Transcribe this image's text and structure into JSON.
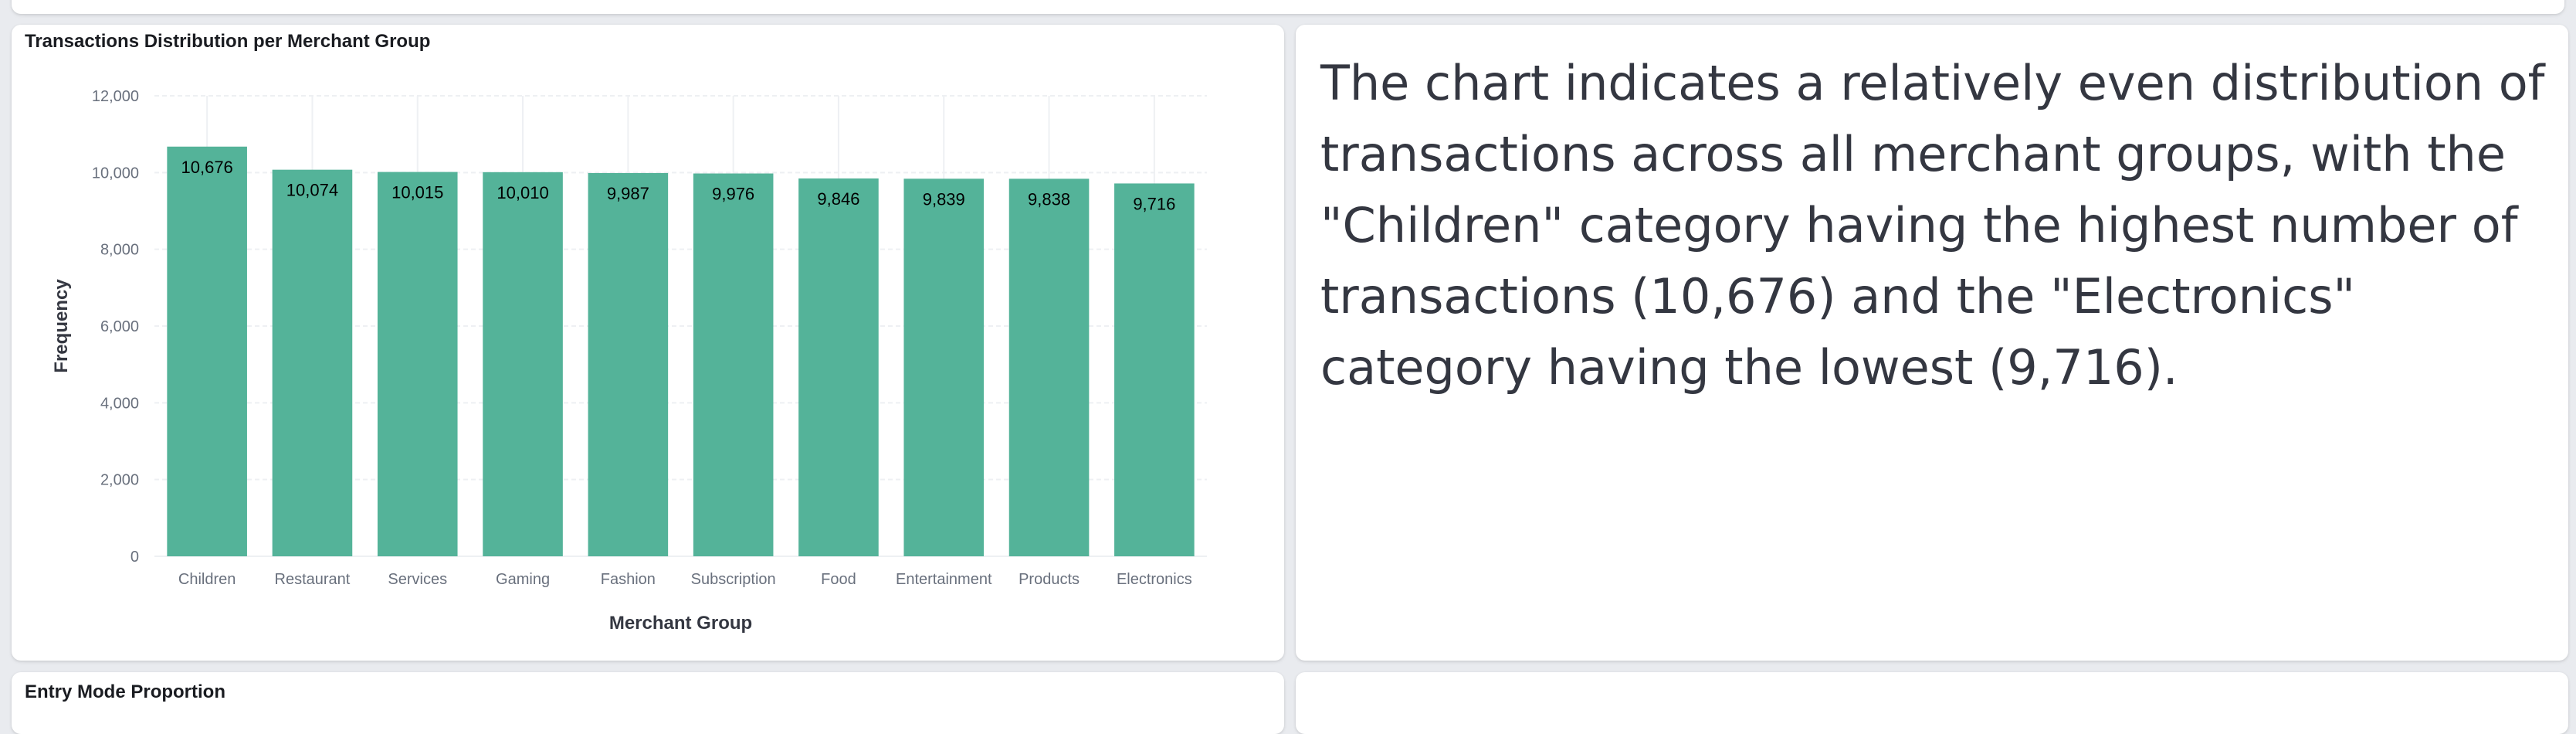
{
  "dashboard": {
    "panels": {
      "chart_panel": {
        "title": "Transactions Distribution per Merchant Group"
      },
      "insight_panel": {
        "text": "The chart indicates a relatively even distribution of transactions across all merchant groups, with the \"Children\" category having the highest number of transactions (10,676) and the \"Electronics\" category having the lowest (9,716)."
      },
      "entry_mode_panel": {
        "title": "Entry Mode Proportion"
      }
    }
  },
  "colors": {
    "bar": "#54b399",
    "page_background": "#e9ebef",
    "panel_background": "#ffffff"
  },
  "chart_data": {
    "type": "bar",
    "title": "Transactions Distribution per Merchant Group",
    "xlabel": "Merchant Group",
    "ylabel": "Frequency",
    "categories": [
      "Children",
      "Restaurant",
      "Services",
      "Gaming",
      "Fashion",
      "Subscription",
      "Food",
      "Entertainment",
      "Products",
      "Electronics"
    ],
    "values": [
      10676,
      10074,
      10015,
      10010,
      9987,
      9976,
      9846,
      9839,
      9838,
      9716
    ],
    "value_labels": [
      "10,676",
      "10,074",
      "10,015",
      "10,010",
      "9,987",
      "9,976",
      "9,846",
      "9,839",
      "9,838",
      "9,716"
    ],
    "ylim": [
      0,
      12000
    ],
    "yticks": [
      0,
      2000,
      4000,
      6000,
      8000,
      10000,
      12000
    ],
    "ytick_labels": [
      "0",
      "2,000",
      "4,000",
      "6,000",
      "8,000",
      "10,000",
      "12,000"
    ],
    "grid": true,
    "legend": "none"
  }
}
